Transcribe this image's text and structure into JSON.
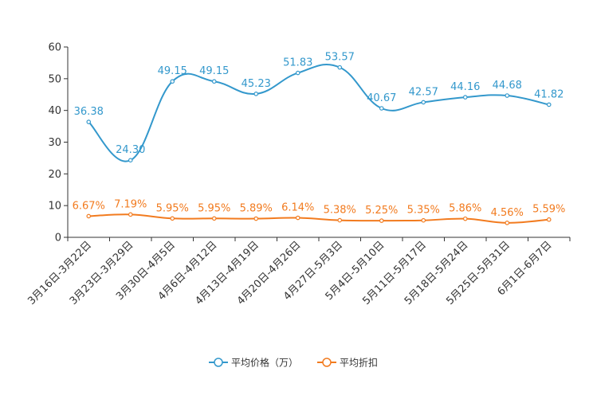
{
  "chart_data": {
    "type": "line",
    "title": "",
    "xlabel": "",
    "ylabel": "",
    "ylim": [
      0,
      60
    ],
    "yticks": [
      0,
      10,
      20,
      30,
      40,
      50,
      60
    ],
    "grid": false,
    "legend_position": "bottom-center",
    "categories": [
      "3月16日-3月22日",
      "3月23日-3月29日",
      "3月30日-4月5日",
      "4月6日-4月12日",
      "4月13日-4月19日",
      "4月20日-4月26日",
      "4月27日-5月3日",
      "5月4日-5月10日",
      "5月11日-5月17日",
      "5月18日-5月24日",
      "5月25日-5月31日",
      "6月1日-6月7日"
    ],
    "series": [
      {
        "name": "平均价格（万）",
        "color": "#3398cc",
        "values": [
          36.38,
          24.3,
          49.15,
          49.15,
          45.23,
          51.83,
          53.57,
          40.67,
          42.57,
          44.16,
          44.68,
          41.82
        ],
        "labels": [
          "36.38",
          "24.30",
          "49.15",
          "49.15",
          "45.23",
          "51.83",
          "53.57",
          "40.67",
          "42.57",
          "44.16",
          "44.68",
          "41.82"
        ]
      },
      {
        "name": "平均折扣",
        "color": "#f27b1f",
        "values": [
          6.67,
          7.19,
          5.95,
          5.95,
          5.89,
          6.14,
          5.38,
          5.25,
          5.35,
          5.86,
          4.56,
          5.59
        ],
        "labels": [
          "6.67%",
          "7.19%",
          "5.95%",
          "5.95%",
          "5.89%",
          "6.14%",
          "5.38%",
          "5.25%",
          "5.35%",
          "5.86%",
          "4.56%",
          "5.59%"
        ]
      }
    ]
  }
}
